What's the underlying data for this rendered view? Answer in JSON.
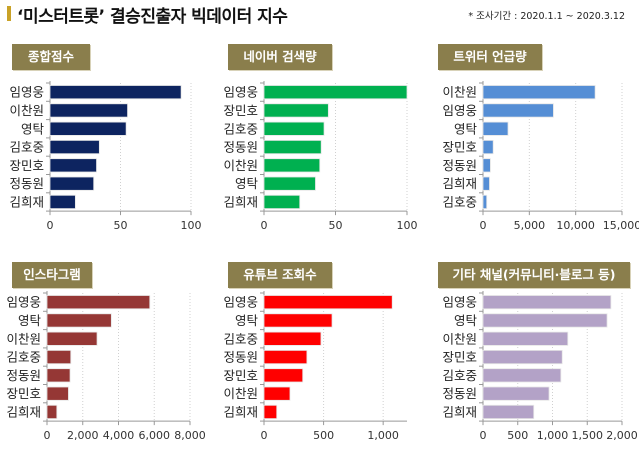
{
  "title": "‘미스터트롯’ 결승진출자 빅데이터 지수",
  "note": "* 조사기간 : 2020.1.1 ~ 2020.3.12",
  "chart_data": [
    {
      "type": "bar",
      "orientation": "horizontal",
      "title": "종합점수",
      "color": "#0d2460",
      "categories": [
        "임영웅",
        "이찬원",
        "영탁",
        "김호중",
        "장민호",
        "정동원",
        "김희재"
      ],
      "values": [
        93,
        55,
        54,
        35,
        33,
        31,
        18
      ],
      "xlim": [
        0,
        100
      ],
      "ticks": [
        0,
        50,
        100
      ],
      "tick_labels": [
        "0",
        "50",
        "100"
      ],
      "grid": true
    },
    {
      "type": "bar",
      "orientation": "horizontal",
      "title": "네이버 검색량",
      "color": "#00b050",
      "categories": [
        "임영웅",
        "장민호",
        "김호중",
        "정동원",
        "이찬원",
        "영탁",
        "김희재"
      ],
      "values": [
        100,
        45,
        42,
        40,
        39,
        36,
        25
      ],
      "xlim": [
        0,
        100
      ],
      "ticks": [
        0,
        50,
        100
      ],
      "tick_labels": [
        "0",
        "50",
        "100"
      ],
      "grid": true
    },
    {
      "type": "bar",
      "orientation": "horizontal",
      "title": "트위터 언급량",
      "color": "#558ed5",
      "categories": [
        "이찬원",
        "임영웅",
        "영탁",
        "장민호",
        "정동원",
        "김희재",
        "김호중"
      ],
      "values": [
        12100,
        7600,
        2700,
        1100,
        800,
        700,
        400
      ],
      "xlim": [
        0,
        15000
      ],
      "ticks": [
        0,
        5000,
        10000,
        15000
      ],
      "tick_labels": [
        "0",
        "5,000",
        "10,000",
        "15,000"
      ],
      "grid": true
    },
    {
      "type": "bar",
      "orientation": "horizontal",
      "title": "인스타그램",
      "color": "#953735",
      "categories": [
        "임영웅",
        "영탁",
        "이찬원",
        "김호중",
        "정동원",
        "장민호",
        "김희재"
      ],
      "values": [
        5750,
        3600,
        2800,
        1330,
        1290,
        1200,
        550
      ],
      "xlim": [
        0,
        8000
      ],
      "ticks": [
        0,
        2000,
        4000,
        6000,
        8000
      ],
      "tick_labels": [
        "0",
        "2,000",
        "4,000",
        "6,000",
        "8,000"
      ],
      "grid": true
    },
    {
      "type": "bar",
      "orientation": "horizontal",
      "title": "유튜브 조회수",
      "color": "#ff0000",
      "categories": [
        "임영웅",
        "영탁",
        "김호중",
        "정동원",
        "장민호",
        "이찬원",
        "김희재"
      ],
      "values": [
        1076,
        571,
        478,
        360,
        325,
        218,
        107
      ],
      "xlim": [
        0,
        1200
      ],
      "ticks": [
        0,
        500,
        1000
      ],
      "tick_labels": [
        "0",
        "500",
        "1,000"
      ],
      "grid": true
    },
    {
      "type": "bar",
      "orientation": "horizontal",
      "title": "기타 채널(커뮤니티·블로그 등)",
      "color": "#b3a2c7",
      "categories": [
        "임영웅",
        "영탁",
        "이찬원",
        "장민호",
        "김호중",
        "정동원",
        "김희재"
      ],
      "values": [
        1840,
        1785,
        1220,
        1140,
        1120,
        950,
        730
      ],
      "xlim": [
        0,
        2000
      ],
      "ticks": [
        0,
        500,
        1000,
        1500,
        2000
      ],
      "tick_labels": [
        "0",
        "500",
        "1,000",
        "1,500",
        "2,000"
      ],
      "grid": true
    }
  ]
}
